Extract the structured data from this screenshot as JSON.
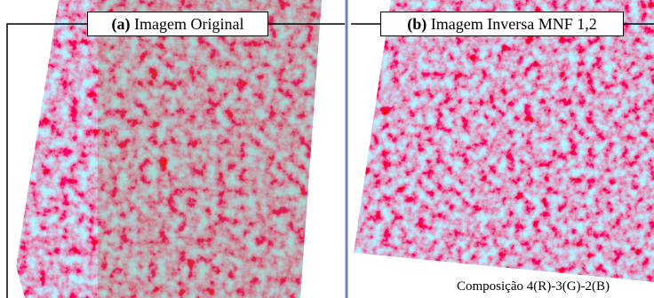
{
  "panels": [
    {
      "letter": "(a)",
      "label": "Imagem Original"
    },
    {
      "letter": "(b)",
      "label": "Imagem Inversa MNF 1,2"
    }
  ],
  "caption": "Composição 4(R)-3(G)-2(B)"
}
